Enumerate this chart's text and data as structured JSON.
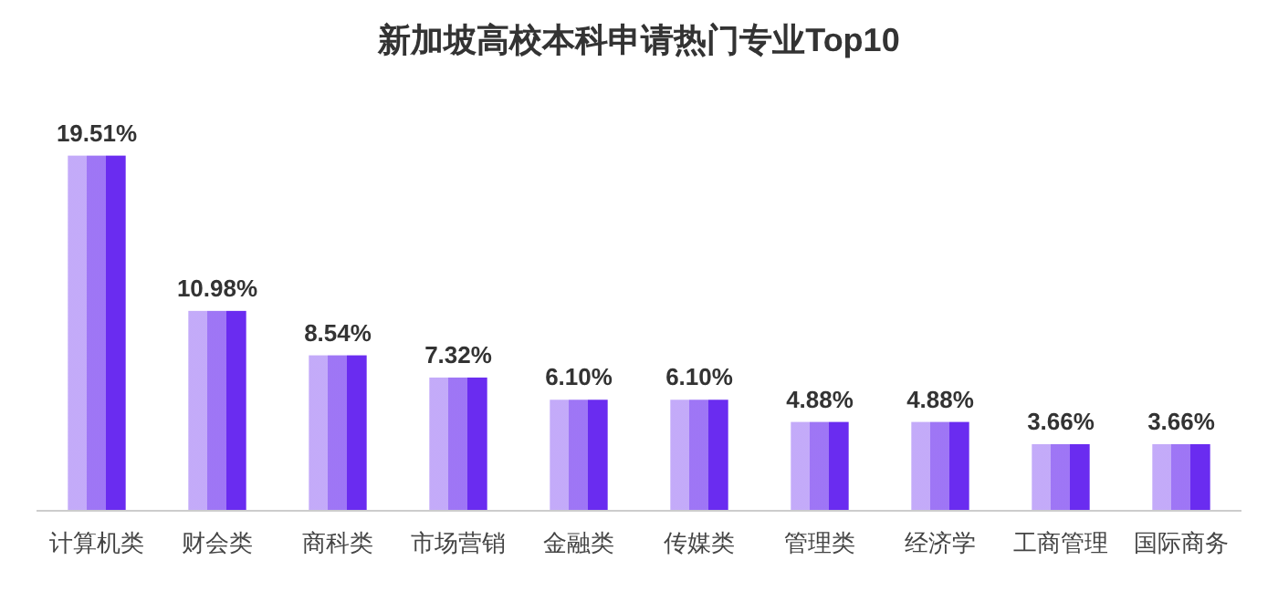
{
  "chart_data": {
    "type": "bar",
    "title": "新加坡高校本科申请热门专业Top10",
    "categories": [
      "计算机类",
      "财会类",
      "商科类",
      "市场营销",
      "金融类",
      "传媒类",
      "管理类",
      "经济学",
      "工商管理",
      "国际商务"
    ],
    "values": [
      19.51,
      10.98,
      8.54,
      7.32,
      6.1,
      6.1,
      4.88,
      4.88,
      3.66,
      3.66
    ],
    "value_labels": [
      "19.51%",
      "10.98%",
      "8.54%",
      "7.32%",
      "6.10%",
      "6.10%",
      "4.88%",
      "4.88%",
      "3.66%",
      "3.66%"
    ],
    "color": "#6a2cf0",
    "grid": false
  }
}
